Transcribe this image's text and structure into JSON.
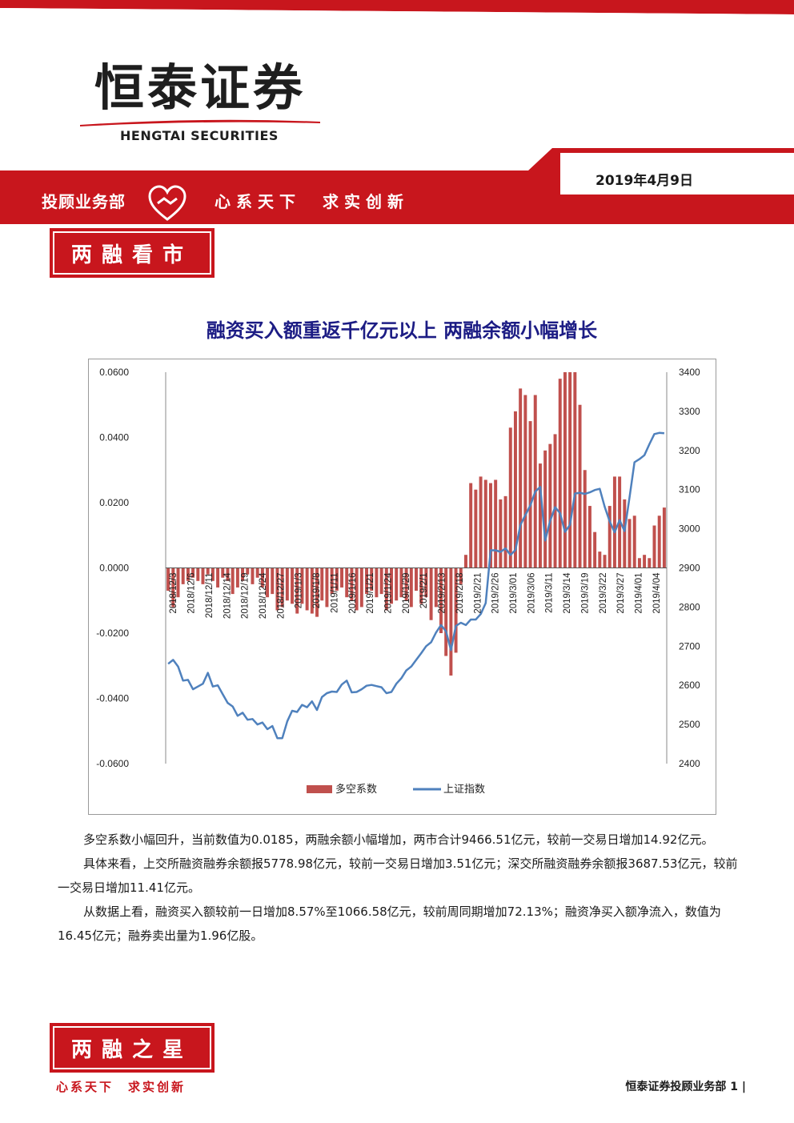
{
  "header": {
    "logo_cn": "恒泰证券",
    "logo_en": "HENGTAI SECURITIES",
    "date": "2019年4月9日",
    "department": "投顾业务部",
    "slogan": "心系天下　求实创新"
  },
  "section_market": {
    "label": "两融看市"
  },
  "article": {
    "title": "融资买入额重返千亿元以上 两融余额小幅增长",
    "paragraphs": [
      "多空系数小幅回升，当前数值为0.0185，两融余额小幅增加，两市合计9466.51亿元，较前一交易日增加14.92亿元。",
      "具体来看，上交所融资融券余额报5778.98亿元，较前一交易日增加3.51亿元；深交所融资融券余额报3687.53亿元，较前一交易日增加11.41亿元。",
      "从数据上看，融资买入额较前一日增加8.57%至1066.58亿元，较前周同期增加72.13%；融资净买入额净流入，数值为16.45亿元；融券卖出量为1.96亿股。"
    ]
  },
  "chart_data": {
    "type": "bar+line",
    "left_axis": {
      "ylim": [
        -0.06,
        0.06
      ],
      "tick_labels": [
        "0.0600",
        "0.0400",
        "0.0200",
        "0.0000",
        "-0.0200",
        "-0.0400",
        "-0.0600"
      ]
    },
    "right_axis": {
      "ylim": [
        2400,
        3400
      ],
      "tick_labels": [
        "3400",
        "3300",
        "3200",
        "3100",
        "3000",
        "2900",
        "2800",
        "2700",
        "2600",
        "2500",
        "2400"
      ]
    },
    "x_tick_labels": [
      "2018/12/3",
      "2018/12/6",
      "2018/12/11",
      "2018/12/14",
      "2018/12/19",
      "2018/12/24",
      "2018/12/27",
      "2019/1/3",
      "2019/1/8",
      "2019/1/11",
      "2019/1/16",
      "2019/1/21",
      "2019/1/24",
      "2019/1/29",
      "2019/2/1",
      "2019/2/13",
      "2019/2/18",
      "2019/2/21",
      "2019/2/26",
      "2019/3/01",
      "2019/3/06",
      "2019/3/11",
      "2019/3/14",
      "2019/3/19",
      "2019/3/22",
      "2019/3/27",
      "2019/4/01",
      "2019/4/04"
    ],
    "series": [
      {
        "name": "多空系数",
        "kind": "bar",
        "color": "#c0504d",
        "values": [
          -0.007,
          -0.012,
          -0.009,
          -0.005,
          -0.004,
          -0.003,
          -0.004,
          -0.005,
          -0.002,
          -0.004,
          -0.006,
          -0.003,
          -0.004,
          -0.008,
          -0.006,
          -0.004,
          -0.002,
          -0.005,
          -0.003,
          -0.006,
          -0.009,
          -0.008,
          -0.013,
          -0.012,
          -0.01,
          -0.011,
          -0.014,
          -0.011,
          -0.013,
          -0.014,
          -0.015,
          -0.01,
          -0.012,
          -0.008,
          -0.007,
          -0.006,
          -0.009,
          -0.01,
          -0.013,
          -0.012,
          -0.008,
          -0.007,
          -0.009,
          -0.008,
          -0.013,
          -0.011,
          -0.01,
          -0.009,
          -0.01,
          -0.012,
          -0.007,
          -0.011,
          -0.009,
          -0.016,
          -0.012,
          -0.02,
          -0.027,
          -0.033,
          -0.026,
          -0.005,
          0.004,
          0.026,
          0.024,
          0.028,
          0.027,
          0.026,
          0.027,
          0.021,
          0.022,
          0.043,
          0.048,
          0.055,
          0.053,
          0.045,
          0.053,
          0.032,
          0.036,
          0.038,
          0.041,
          0.058,
          0.06,
          0.06,
          0.06,
          0.05,
          0.03,
          0.019,
          0.011,
          0.005,
          0.004,
          0.019,
          0.028,
          0.028,
          0.021,
          0.015,
          0.016,
          0.003,
          0.004,
          0.003,
          0.013,
          0.016,
          0.0185
        ]
      },
      {
        "name": "上证指数",
        "kind": "line",
        "color": "#4f81bd",
        "values": [
          2655,
          2665,
          2648,
          2612,
          2614,
          2590,
          2597,
          2604,
          2632,
          2597,
          2600,
          2577,
          2555,
          2546,
          2522,
          2530,
          2512,
          2514,
          2500,
          2505,
          2488,
          2496,
          2465,
          2465,
          2508,
          2535,
          2532,
          2550,
          2544,
          2559,
          2537,
          2570,
          2580,
          2584,
          2583,
          2602,
          2612,
          2582,
          2583,
          2590,
          2599,
          2601,
          2598,
          2595,
          2580,
          2583,
          2604,
          2618,
          2638,
          2648,
          2665,
          2682,
          2700,
          2710,
          2735,
          2754,
          2738,
          2690,
          2752,
          2760,
          2754,
          2768,
          2768,
          2782,
          2810,
          2945,
          2945,
          2941,
          2950,
          2933,
          2946,
          3010,
          3035,
          3060,
          3095,
          3107,
          2970,
          3020,
          3055,
          3040,
          2992,
          3010,
          3090,
          3092,
          3089,
          3093,
          3099,
          3102,
          3056,
          3019,
          2991,
          3022,
          2994,
          3080,
          3170,
          3178,
          3188,
          3216,
          3242,
          3245,
          3244
        ]
      }
    ]
  },
  "section_star": {
    "label": "两融之星"
  },
  "footer": {
    "slogan": "心系天下　求实创新",
    "page_label": "恒泰证券投顾业务部 1 |"
  }
}
